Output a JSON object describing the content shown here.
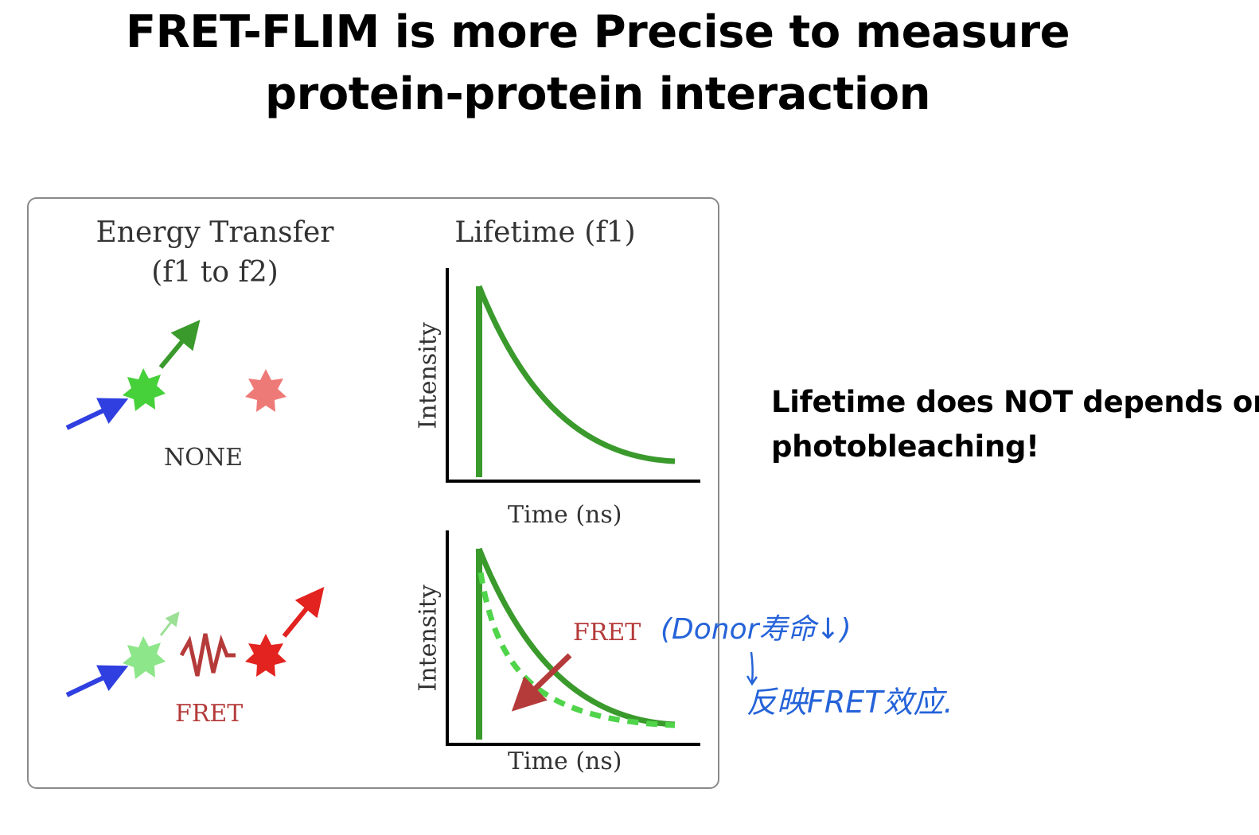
{
  "title": {
    "line1": "FRET-FLIM is more Precise to measure",
    "line2": "protein-protein interaction"
  },
  "figure": {
    "energy_transfer_heading_1": "Energy Transfer",
    "energy_transfer_heading_2": "(f1 to f2)",
    "lifetime_heading": "Lifetime (f1)",
    "none_label": "NONE",
    "fret_label": "FRET",
    "top_plot": {
      "y_label": "Intensity",
      "x_label": "Time (ns)"
    },
    "bottom_plot": {
      "y_label": "Intensity",
      "x_label": "Time (ns)",
      "annotation": "FRET"
    },
    "colors": {
      "excitation_arrow": "#2f3fe0",
      "donor": "#46d13a",
      "donor_dim": "#8ee68a",
      "donor_emission": "#3a9a2c",
      "acceptor": "#e2231f",
      "acceptor_dim": "#ee7a78",
      "decay_curve": "#3a9a2c",
      "fret_decay_curve": "#4fd44a",
      "fret_label": "#b53a3a",
      "axis": "#000000"
    }
  },
  "side_note": {
    "line1": "Lifetime does NOT depends on",
    "line2": "photobleaching!"
  },
  "handwriting": {
    "line1": "(Donor寿命↓)",
    "arrow": "↓",
    "line2": "反映FRET效应."
  }
}
